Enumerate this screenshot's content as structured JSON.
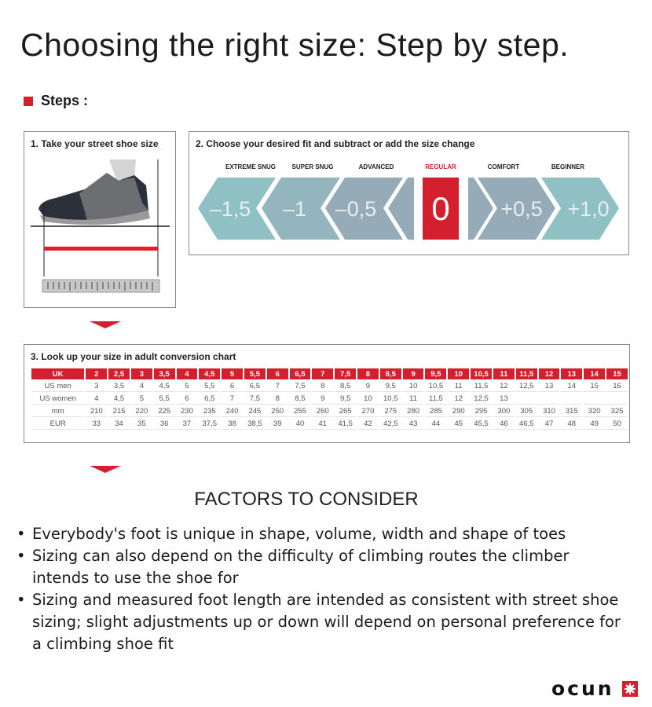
{
  "title": "Choosing the right size: Step by step.",
  "steps_heading": "Steps :",
  "step1": {
    "title": "1. Take your street shoe size"
  },
  "step2": {
    "title": "2. Choose your desired fit and subtract or add the size change",
    "fits": [
      {
        "label": "EXTREME SNUG",
        "value": "–1,5"
      },
      {
        "label": "SUPER SNUG",
        "value": "–1"
      },
      {
        "label": "ADVANCED",
        "value": "–0,5"
      },
      {
        "label": "REGULAR",
        "value": "0"
      },
      {
        "label": "COMFORT",
        "value": "+0,5"
      },
      {
        "label": "BEGINNER",
        "value": "+1,0"
      }
    ]
  },
  "step3": {
    "title": "3. Look up your size in adult conversion chart",
    "header": [
      "UK",
      "2",
      "2,5",
      "3",
      "3,5",
      "4",
      "4,5",
      "5",
      "5,5",
      "6",
      "6,5",
      "7",
      "7,5",
      "8",
      "8,5",
      "9",
      "9,5",
      "10",
      "10,5",
      "11",
      "11,5",
      "12",
      "13",
      "14",
      "15"
    ],
    "rows": [
      [
        "US men",
        "3",
        "3,5",
        "4",
        "4,5",
        "5",
        "5,5",
        "6",
        "6,5",
        "7",
        "7,5",
        "8",
        "8,5",
        "9",
        "9,5",
        "10",
        "10,5",
        "11",
        "11,5",
        "12",
        "12,5",
        "13",
        "14",
        "15",
        "16"
      ],
      [
        "US women",
        "4",
        "4,5",
        "5",
        "5,5",
        "6",
        "6,5",
        "7",
        "7,5",
        "8",
        "8,5",
        "9",
        "9,5",
        "10",
        "10,5",
        "11",
        "11,5",
        "12",
        "12,5",
        "13",
        "",
        "",
        "",
        "",
        ""
      ],
      [
        "mm",
        "210",
        "215",
        "220",
        "225",
        "230",
        "235",
        "240",
        "245",
        "250",
        "255",
        "260",
        "265",
        "270",
        "275",
        "280",
        "285",
        "290",
        "295",
        "300",
        "305",
        "310",
        "315",
        "320",
        "325"
      ],
      [
        "EUR",
        "33",
        "34",
        "35",
        "36",
        "37",
        "37,5",
        "38",
        "38,5",
        "39",
        "40",
        "41",
        "41,5",
        "42",
        "42,5",
        "43",
        "44",
        "45",
        "45,5",
        "46",
        "46,5",
        "47",
        "48",
        "49",
        "50"
      ]
    ]
  },
  "factors": {
    "heading": "FACTORS TO CONSIDER",
    "items": [
      "Everybody's foot is unique in shape, volume, width and shape of toes",
      "Sizing can also depend on the difficulty of climbing routes the climber intends to use the shoe for",
      "Sizing and measured foot length are intended as consistent with street shoe sizing; slight adjustments up or down will depend on personal preference for a climbing shoe fit"
    ]
  },
  "logo": {
    "text": "OCUN"
  },
  "colors": {
    "accent": "#d41f2f",
    "chevron_teal": "#8fc0c3",
    "chevron_grey": "#96aab7"
  }
}
